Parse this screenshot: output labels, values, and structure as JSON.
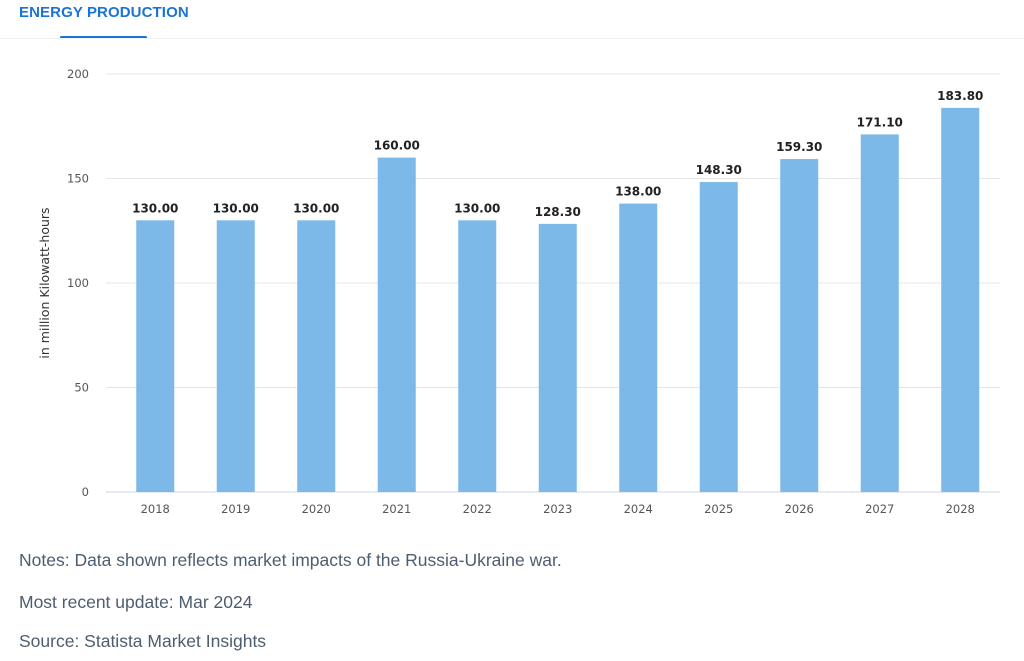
{
  "tab": {
    "label": "ENERGY PRODUCTION"
  },
  "chart_data": {
    "type": "bar",
    "title": "",
    "xlabel": "",
    "ylabel": "in million Kilowatt-hours",
    "categories": [
      "2018",
      "2019",
      "2020",
      "2021",
      "2022",
      "2023",
      "2024",
      "2025",
      "2026",
      "2027",
      "2028"
    ],
    "values": [
      130.0,
      130.0,
      130.0,
      160.0,
      130.0,
      128.3,
      138.0,
      148.3,
      159.3,
      171.1,
      183.8
    ],
    "data_labels": [
      "130.00",
      "130.00",
      "130.00",
      "160.00",
      "130.00",
      "128.30",
      "138.00",
      "148.30",
      "159.30",
      "171.10",
      "183.80"
    ],
    "ylim": [
      0,
      200
    ],
    "yticks": [
      "0",
      "50",
      "100",
      "150",
      "200"
    ],
    "grid": true,
    "bar_color": "#7cb9e8"
  },
  "notes": {
    "notes": "Notes: Data shown reflects market impacts of the Russia-Ukraine war.",
    "update": "Most recent update: Mar 2024",
    "source": "Source: Statista Market Insights"
  }
}
